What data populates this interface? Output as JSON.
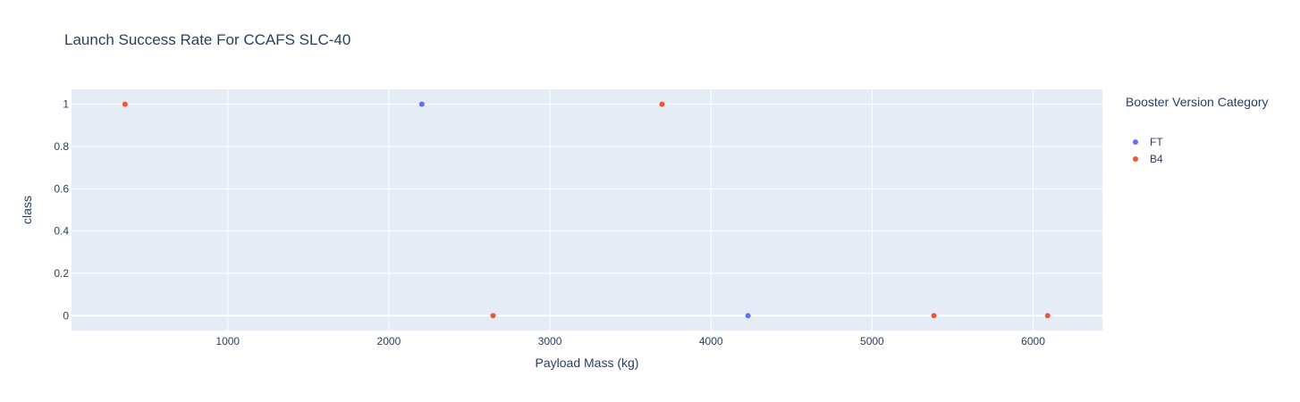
{
  "chart_data": {
    "type": "scatter",
    "title": "Launch Success Rate For CCAFS SLC-40",
    "xlabel": "Payload Mass (kg)",
    "ylabel": "class",
    "xlim": [
      30,
      6430
    ],
    "ylim": [
      -0.07,
      1.07
    ],
    "x_ticks": [
      1000,
      2000,
      3000,
      4000,
      5000,
      6000
    ],
    "y_ticks": [
      0,
      0.2,
      0.4,
      0.6,
      0.8,
      1
    ],
    "grid": true,
    "legend": {
      "title": "Booster Version Category",
      "placement": "top-right"
    },
    "series": [
      {
        "name": "FT",
        "color": "#636efa",
        "points": [
          {
            "x": 2205,
            "y": 1
          },
          {
            "x": 4230,
            "y": 0
          }
        ]
      },
      {
        "name": "B4",
        "color": "#ef553b",
        "points": [
          {
            "x": 362,
            "y": 1
          },
          {
            "x": 2647,
            "y": 0
          },
          {
            "x": 3696,
            "y": 1
          },
          {
            "x": 5384,
            "y": 0
          },
          {
            "x": 6090,
            "y": 0
          }
        ]
      }
    ]
  }
}
